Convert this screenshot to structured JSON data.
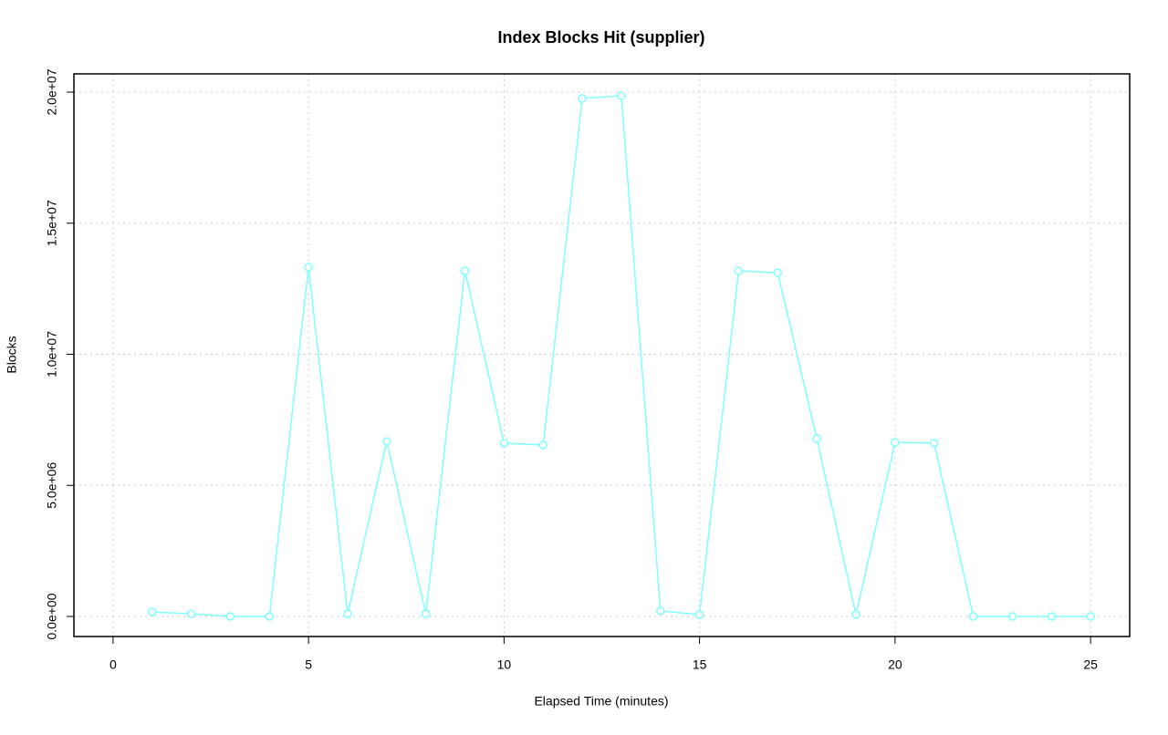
{
  "chart_data": {
    "type": "line",
    "title": "Index Blocks Hit (supplier)",
    "xlabel": "Elapsed Time (minutes)",
    "ylabel": "Blocks",
    "x": [
      1,
      2,
      3,
      4,
      5,
      6,
      7,
      8,
      9,
      10,
      11,
      12,
      13,
      14,
      15,
      16,
      17,
      18,
      19,
      20,
      21,
      22,
      23,
      24,
      25
    ],
    "series": [
      {
        "name": "supplier",
        "color": "#7fffff",
        "values": [
          170000,
          100000,
          0,
          0,
          13320000,
          100000,
          6680000,
          100000,
          13180000,
          6610000,
          6540000,
          19760000,
          19860000,
          210000,
          70000,
          13180000,
          13110000,
          6780000,
          70000,
          6640000,
          6610000,
          0,
          0,
          0,
          0
        ]
      }
    ],
    "xlim": [
      -1,
      26
    ],
    "xticks": [
      0,
      5,
      10,
      15,
      20,
      25
    ],
    "ylim": [
      -765000,
      20696000
    ],
    "yticks": [
      {
        "value": 0,
        "label": "0.0e+00"
      },
      {
        "value": 5000000,
        "label": "5.0e+06"
      },
      {
        "value": 10000000,
        "label": "1.0e+07"
      },
      {
        "value": 15000000,
        "label": "1.5e+07"
      },
      {
        "value": 20000000,
        "label": "2.0e+07"
      }
    ],
    "grid": true
  }
}
